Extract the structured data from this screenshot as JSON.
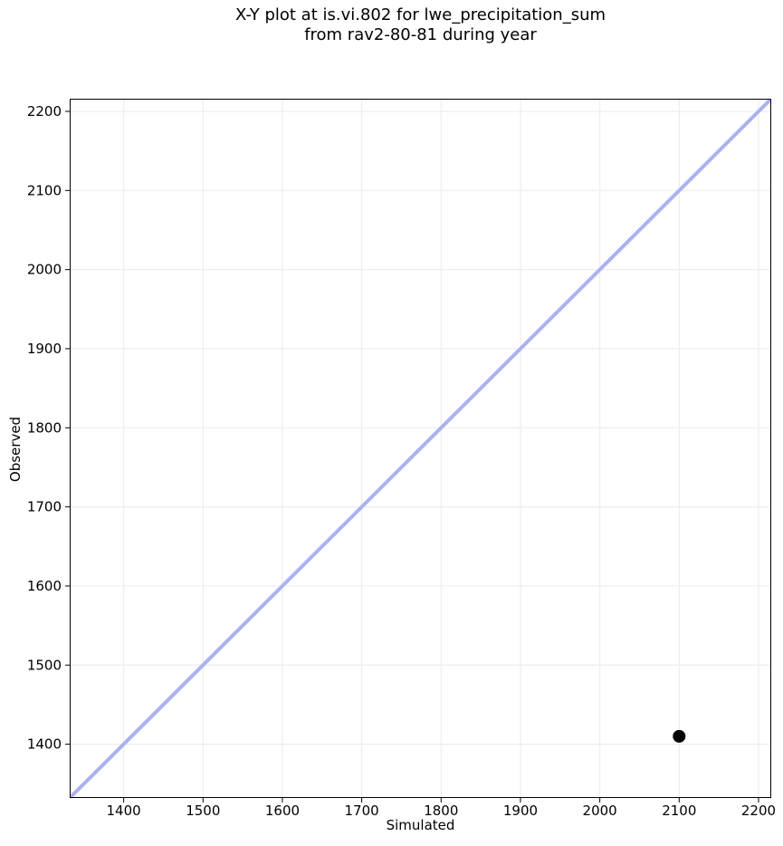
{
  "title": {
    "line1": "X-Y plot at is.vi.802 for lwe_precipitation_sum",
    "line2": "from rav2-80-81 during year"
  },
  "chart_data": {
    "type": "scatter",
    "title": "X-Y plot at is.vi.802 for lwe_precipitation_sum\nfrom rav2-80-81 during year",
    "xlabel": "Simulated",
    "ylabel": "Observed",
    "xlim": [
      1332,
      2216
    ],
    "ylim": [
      1332,
      2216
    ],
    "xticks": [
      1400,
      1500,
      1600,
      1700,
      1800,
      1900,
      2000,
      2100,
      2200
    ],
    "yticks": [
      1400,
      1500,
      1600,
      1700,
      1800,
      1900,
      2000,
      2100,
      2200
    ],
    "grid": true,
    "legend": null,
    "series": [
      {
        "name": "identity-line",
        "kind": "line",
        "color": "#abb1f1",
        "width": 4,
        "points": [
          {
            "x": 1332,
            "y": 1332
          },
          {
            "x": 2216,
            "y": 2216
          }
        ]
      },
      {
        "name": "observation-point",
        "kind": "scatter",
        "color": "#000000",
        "marker_radius": 7,
        "points": [
          {
            "x": 2100,
            "y": 1410
          }
        ]
      }
    ]
  },
  "colors": {
    "background": "#ffffff",
    "grid": "#ededed",
    "axis": "#000000",
    "text": "#000000",
    "identity_line": "#abb1f1",
    "point": "#000000"
  }
}
